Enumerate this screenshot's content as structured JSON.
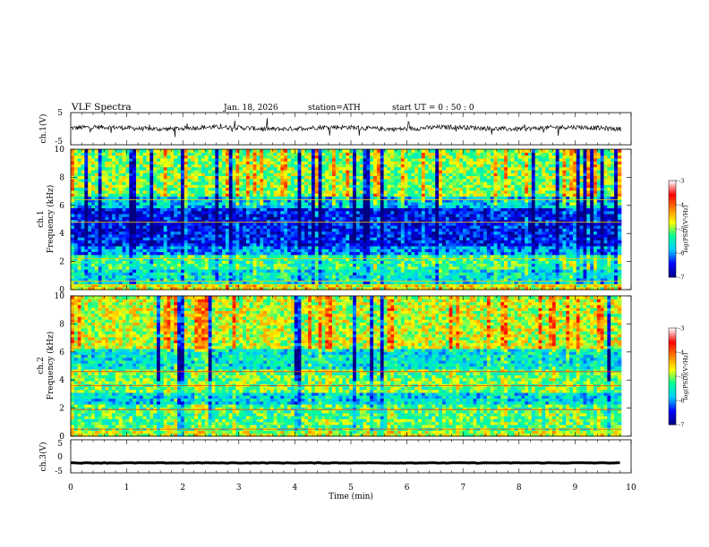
{
  "header": {
    "title": "VLF  Spectra",
    "date": "Jan. 18, 2026",
    "station": "station=ATH",
    "start": "start  UT  =   0 : 50 : 0"
  },
  "chart_data": [
    {
      "type": "line",
      "name": "ch1-waveform",
      "ylabel": "ch.1(V)",
      "ylim": [
        -5,
        5
      ],
      "yticks": [
        "5",
        "-5"
      ],
      "xlim": [
        0,
        10
      ],
      "note": "noisy waveform around 0 V with spikes, data ends near 9.8 min"
    },
    {
      "type": "heatmap",
      "name": "ch1-spectrogram",
      "ylabel": "ch.1\nFrequency  (kHz)",
      "ylabel_line1": "ch.1",
      "ylabel_line2": "Frequency  (kHz)",
      "ylim": [
        0,
        10
      ],
      "yticks": [
        "0",
        "2",
        "4",
        "6",
        "8",
        "10"
      ],
      "xlim": [
        0,
        10
      ],
      "colorbar": {
        "label": "log(PSD)(V²/Hz)",
        "range": [
          -7,
          -3
        ],
        "ticks": [
          "-3",
          "-4",
          "-5",
          "-6",
          "-7"
        ]
      }
    },
    {
      "type": "heatmap",
      "name": "ch2-spectrogram",
      "ylabel": "ch.2\nFrequency  (kHz)",
      "ylabel_line1": "ch.2",
      "ylabel_line2": "Frequency  (kHz)",
      "ylim": [
        0,
        10
      ],
      "yticks": [
        "0",
        "2",
        "4",
        "6",
        "8",
        "10"
      ],
      "xlim": [
        0,
        10
      ],
      "colorbar": {
        "label": "log(PSD)(V²/Hz)",
        "range": [
          -7,
          -3
        ],
        "ticks": [
          "-3",
          "-4",
          "-5",
          "-6",
          "-7"
        ]
      }
    },
    {
      "type": "line",
      "name": "ch3-waveform",
      "ylabel": "ch.3(V)",
      "ylim": [
        -5,
        5
      ],
      "yticks": [
        "5",
        "0",
        "-5"
      ],
      "xlim": [
        0,
        10
      ],
      "xlabel": "Time  (min)",
      "xticks": [
        "0",
        "1",
        "2",
        "3",
        "4",
        "5",
        "6",
        "7",
        "8",
        "9",
        "10"
      ],
      "note": "flat thick trace near -2 V"
    }
  ],
  "colors": {
    "colormap": [
      "#000080",
      "#0000ff",
      "#00ccff",
      "#00ff99",
      "#ffff00",
      "#ff8000",
      "#ff0000",
      "#ffffff"
    ]
  }
}
